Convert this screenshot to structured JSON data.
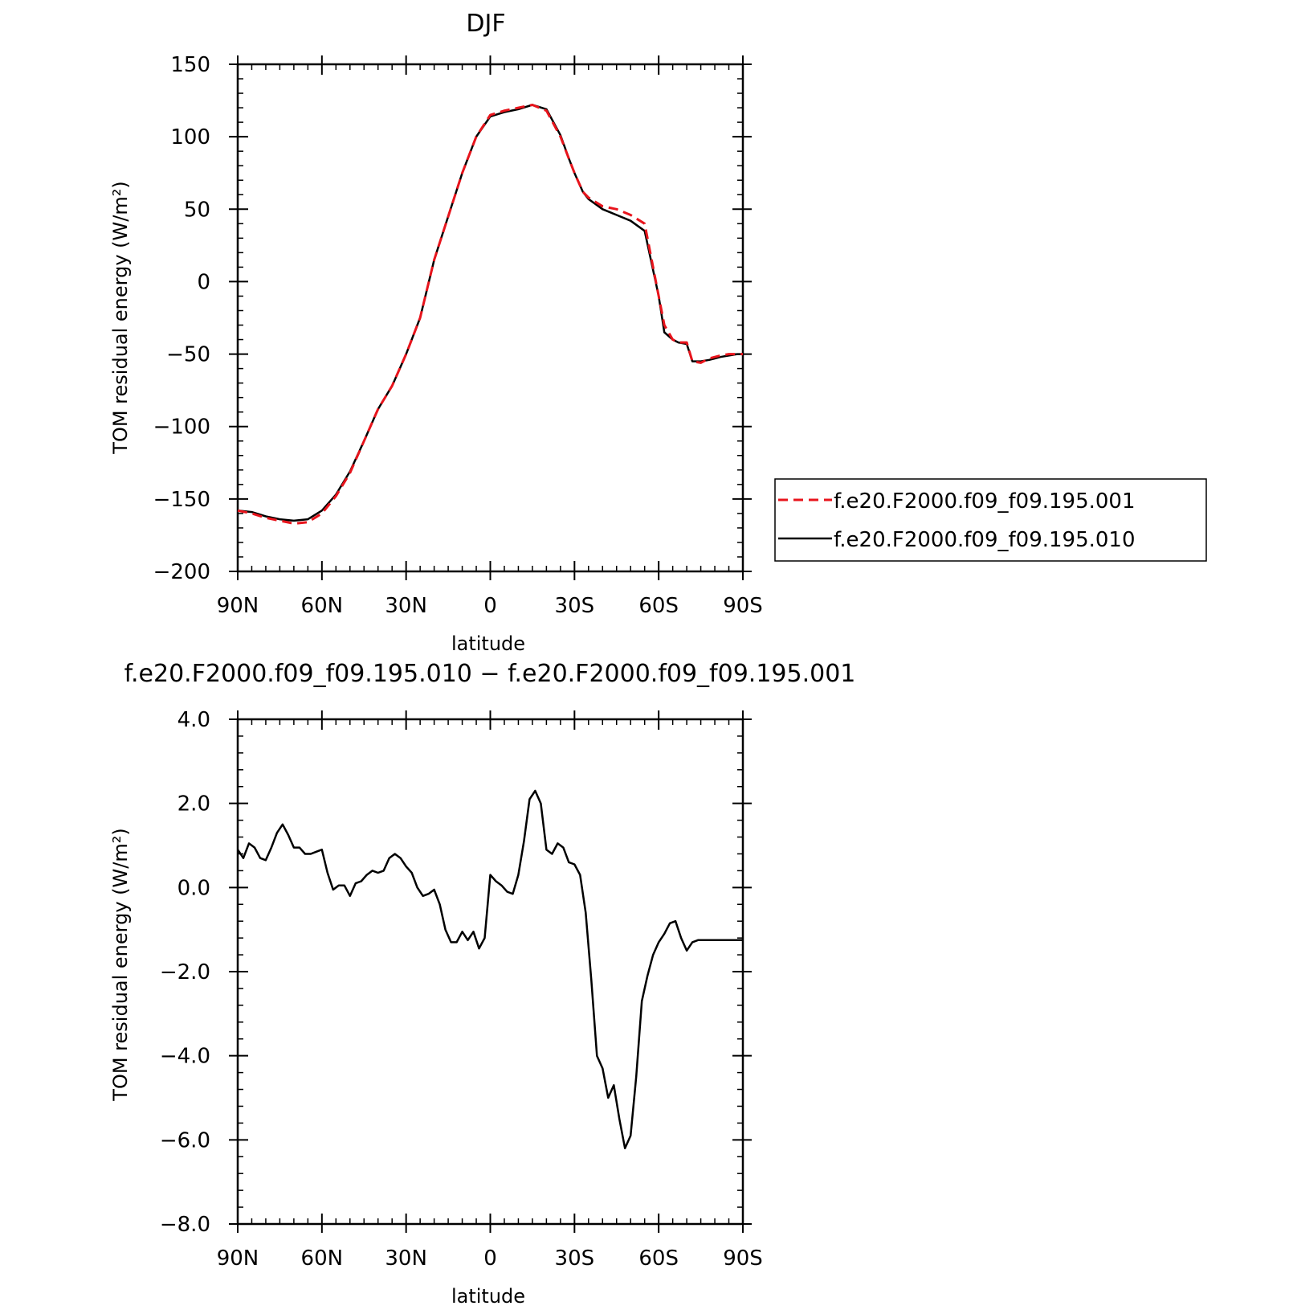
{
  "chart_data": [
    {
      "type": "line",
      "title": "DJF",
      "xlabel": "latitude",
      "ylabel": "TOM residual energy (W/m²)",
      "xlim": [
        90,
        -90
      ],
      "ylim": [
        -200,
        150
      ],
      "x_ticks": [
        {
          "value": 90,
          "label": "90N"
        },
        {
          "value": 60,
          "label": "60N"
        },
        {
          "value": 30,
          "label": "30N"
        },
        {
          "value": 0,
          "label": "0"
        },
        {
          "value": -30,
          "label": "30S"
        },
        {
          "value": -60,
          "label": "60S"
        },
        {
          "value": -90,
          "label": "90S"
        }
      ],
      "y_ticks": [
        {
          "value": 150,
          "label": "150"
        },
        {
          "value": 100,
          "label": "100"
        },
        {
          "value": 50,
          "label": "50"
        },
        {
          "value": 0,
          "label": "0"
        },
        {
          "value": -50,
          "label": "−50"
        },
        {
          "value": -100,
          "label": "−100"
        },
        {
          "value": -150,
          "label": "−150"
        },
        {
          "value": -200,
          "label": "−200"
        }
      ],
      "legend_position": "right",
      "series": [
        {
          "name": "f.e20.F2000.f09_f09.195.001",
          "color": "#e8141c",
          "dash": "dashed",
          "x": [
            90,
            85,
            80,
            75,
            70,
            65,
            60,
            55,
            50,
            45,
            40,
            35,
            30,
            25,
            20,
            15,
            10,
            5,
            0,
            -5,
            -10,
            -15,
            -20,
            -25,
            -28,
            -30,
            -33,
            -35,
            -40,
            -45,
            -50,
            -55,
            -60,
            -62,
            -65,
            -67,
            -70,
            -72,
            -75,
            -78,
            -80,
            -82,
            -85,
            -88,
            -90
          ],
          "y": [
            -158,
            -160,
            -163,
            -165,
            -167,
            -166,
            -160,
            -148,
            -132,
            -110,
            -88,
            -72,
            -50,
            -25,
            15,
            45,
            75,
            100,
            115,
            118,
            120,
            122,
            118,
            100,
            85,
            75,
            62,
            58,
            52,
            50,
            46,
            40,
            -10,
            -30,
            -40,
            -42,
            -42,
            -55,
            -56,
            -53,
            -52,
            -51,
            -50,
            -50,
            -50
          ]
        },
        {
          "name": "f.e20.F2000.f09_f09.195.010",
          "color": "#000000",
          "dash": "solid",
          "x": [
            90,
            85,
            80,
            75,
            70,
            65,
            60,
            55,
            50,
            45,
            40,
            35,
            30,
            25,
            20,
            15,
            10,
            5,
            0,
            -5,
            -10,
            -15,
            -20,
            -25,
            -28,
            -30,
            -33,
            -35,
            -40,
            -45,
            -50,
            -55,
            -60,
            -62,
            -65,
            -67,
            -70,
            -72,
            -75,
            -78,
            -80,
            -82,
            -85,
            -88,
            -90
          ],
          "y": [
            -158,
            -159,
            -162,
            -164,
            -165,
            -164,
            -158,
            -147,
            -131,
            -110,
            -88,
            -72,
            -50,
            -25,
            15,
            45,
            75,
            100,
            114,
            117,
            119,
            122,
            119,
            101,
            85,
            75,
            62,
            57,
            50,
            46,
            42,
            35,
            -10,
            -35,
            -40,
            -42,
            -43,
            -55,
            -55,
            -54,
            -53,
            -52,
            -51,
            -50,
            -50
          ]
        }
      ]
    },
    {
      "type": "line",
      "title": "f.e20.F2000.f09_f09.195.010 − f.e20.F2000.f09_f09.195.001",
      "xlabel": "latitude",
      "ylabel": "TOM residual energy (W/m²)",
      "xlim": [
        90,
        -90
      ],
      "ylim": [
        -8,
        4
      ],
      "x_ticks": [
        {
          "value": 90,
          "label": "90N"
        },
        {
          "value": 60,
          "label": "60N"
        },
        {
          "value": 30,
          "label": "30N"
        },
        {
          "value": 0,
          "label": "0"
        },
        {
          "value": -30,
          "label": "30S"
        },
        {
          "value": -60,
          "label": "60S"
        },
        {
          "value": -90,
          "label": "90S"
        }
      ],
      "y_ticks": [
        {
          "value": 4,
          "label": "4.0"
        },
        {
          "value": 2,
          "label": "2.0"
        },
        {
          "value": 0,
          "label": "0.0"
        },
        {
          "value": -2,
          "label": "−2.0"
        },
        {
          "value": -4,
          "label": "−4.0"
        },
        {
          "value": -6,
          "label": "−6.0"
        },
        {
          "value": -8,
          "label": "−8.0"
        }
      ],
      "series": [
        {
          "color": "#000000",
          "dash": "solid",
          "x": [
            90,
            88,
            86,
            84,
            82,
            80,
            78,
            76,
            74,
            72,
            70,
            68,
            66,
            64,
            62,
            60,
            58,
            56,
            54,
            52,
            50,
            48,
            46,
            44,
            42,
            40,
            38,
            36,
            34,
            32,
            30,
            28,
            26,
            24,
            22,
            20,
            18,
            16,
            14,
            12,
            10,
            8,
            6,
            4,
            2,
            0,
            -2,
            -4,
            -6,
            -8,
            -10,
            -12,
            -14,
            -16,
            -18,
            -20,
            -22,
            -24,
            -26,
            -28,
            -30,
            -32,
            -34,
            -36,
            -38,
            -40,
            -42,
            -44,
            -46,
            -48,
            -50,
            -52,
            -54,
            -56,
            -58,
            -60,
            -62,
            -64,
            -66,
            -68,
            -70,
            -72,
            -74,
            -76,
            -78,
            -80,
            -82,
            -84,
            -86,
            -88,
            -90
          ],
          "y": [
            0.9,
            0.7,
            1.05,
            0.95,
            0.7,
            0.65,
            0.95,
            1.3,
            1.5,
            1.25,
            0.95,
            0.95,
            0.8,
            0.8,
            0.85,
            0.9,
            0.35,
            -0.05,
            0.05,
            0.05,
            -0.2,
            0.1,
            0.15,
            0.3,
            0.4,
            0.35,
            0.4,
            0.7,
            0.8,
            0.7,
            0.5,
            0.35,
            0.0,
            -0.2,
            -0.15,
            -0.05,
            -0.4,
            -1.0,
            -1.3,
            -1.3,
            -1.05,
            -1.25,
            -1.05,
            -1.45,
            -1.2,
            0.3,
            0.15,
            0.05,
            -0.1,
            -0.15,
            0.3,
            1.1,
            2.1,
            2.3,
            2.0,
            0.9,
            0.8,
            1.05,
            0.95,
            0.6,
            0.55,
            0.3,
            -0.6,
            -2.2,
            -4.0,
            -4.3,
            -5.0,
            -4.7,
            -5.5,
            -6.2,
            -5.9,
            -4.5,
            -2.7,
            -2.1,
            -1.6,
            -1.3,
            -1.1,
            -0.85,
            -0.8,
            -1.2,
            -1.5,
            -1.3,
            -1.25,
            -1.25,
            -1.25,
            -1.25,
            -1.25,
            -1.25,
            -1.25,
            -1.25,
            -1.25
          ]
        }
      ]
    }
  ]
}
